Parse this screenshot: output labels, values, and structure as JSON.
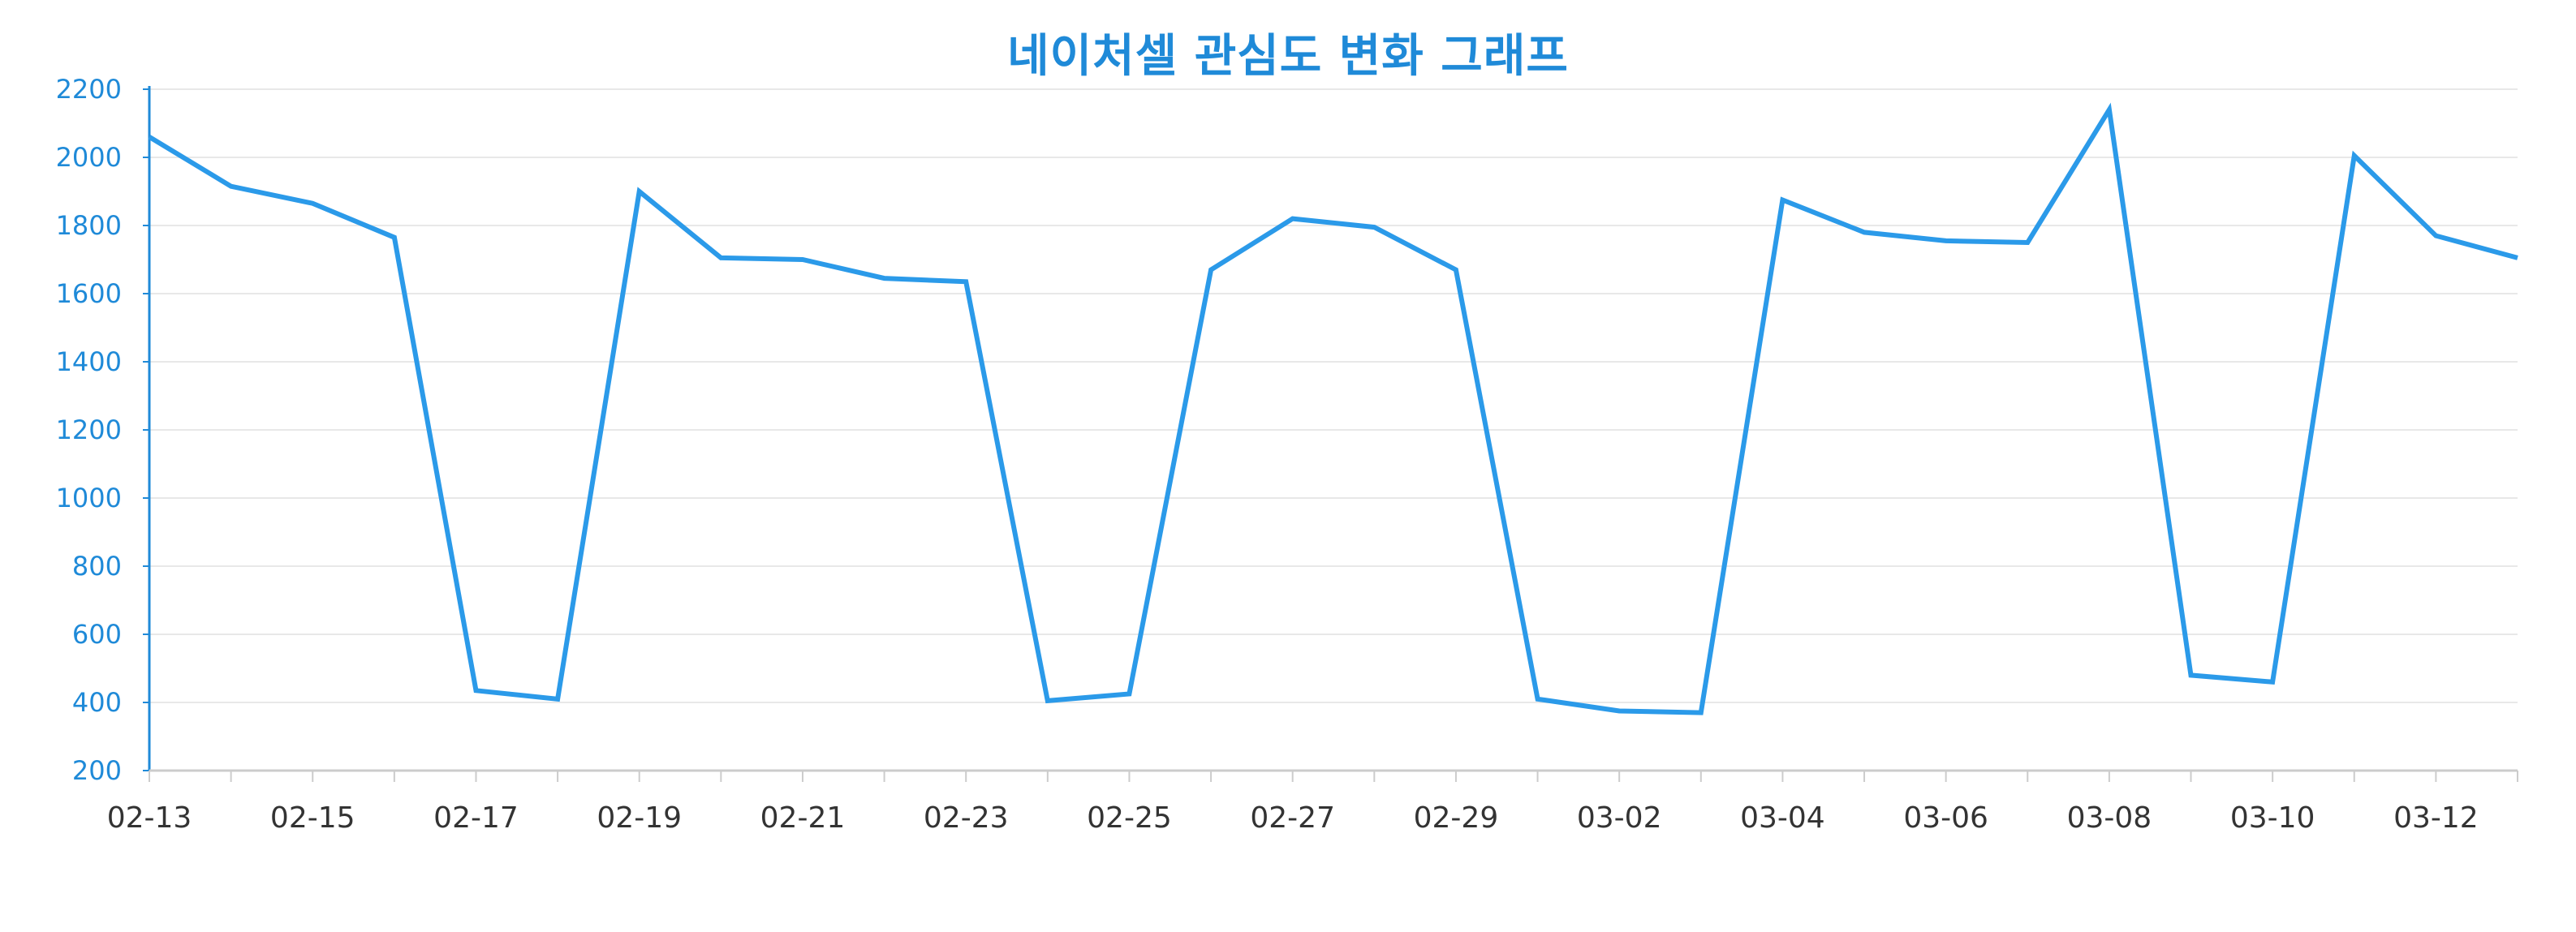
{
  "chart_data": {
    "type": "line",
    "title": "네이처셀 관심도 변화 그래프",
    "xlabel": "",
    "ylabel": "",
    "ylim": [
      200,
      2200
    ],
    "yticks": [
      200,
      400,
      600,
      800,
      1000,
      1200,
      1400,
      1600,
      1800,
      2000,
      2200
    ],
    "x": [
      "02-13",
      "02-14",
      "02-15",
      "02-16",
      "02-17",
      "02-18",
      "02-19",
      "02-20",
      "02-21",
      "02-22",
      "02-23",
      "02-24",
      "02-25",
      "02-26",
      "02-27",
      "02-28",
      "02-29",
      "03-01",
      "03-02",
      "03-03",
      "03-04",
      "03-05",
      "03-06",
      "03-07",
      "03-08",
      "03-09",
      "03-10",
      "03-11",
      "03-12",
      "03-13"
    ],
    "xtick_labels": [
      "02-13",
      "02-15",
      "02-17",
      "02-19",
      "02-21",
      "02-23",
      "02-25",
      "02-27",
      "02-29",
      "03-02",
      "03-04",
      "03-06",
      "03-08",
      "03-10",
      "03-12"
    ],
    "xtick_label_colors": {
      "02-17": "#1f8ad8",
      "03-02": "#1f8ad8",
      "02-25": "#e05a3a",
      "03-10": "#e05a3a"
    },
    "series": [
      {
        "values": [
          2060,
          1915,
          1865,
          1765,
          435,
          410,
          1900,
          1705,
          1700,
          1645,
          1635,
          405,
          425,
          1670,
          1820,
          1795,
          1670,
          410,
          375,
          370,
          1875,
          1780,
          1755,
          1750,
          2140,
          480,
          460,
          2005,
          1770,
          1705
        ],
        "color": "#2b9ae9"
      }
    ],
    "grid": true,
    "legend": "none",
    "colors": {
      "line": "#2b9ae9",
      "axis": "#1f8ad8",
      "grid": "#e8e8e8",
      "xaxis": "#cccccc",
      "title": "#1f8ad8"
    }
  }
}
